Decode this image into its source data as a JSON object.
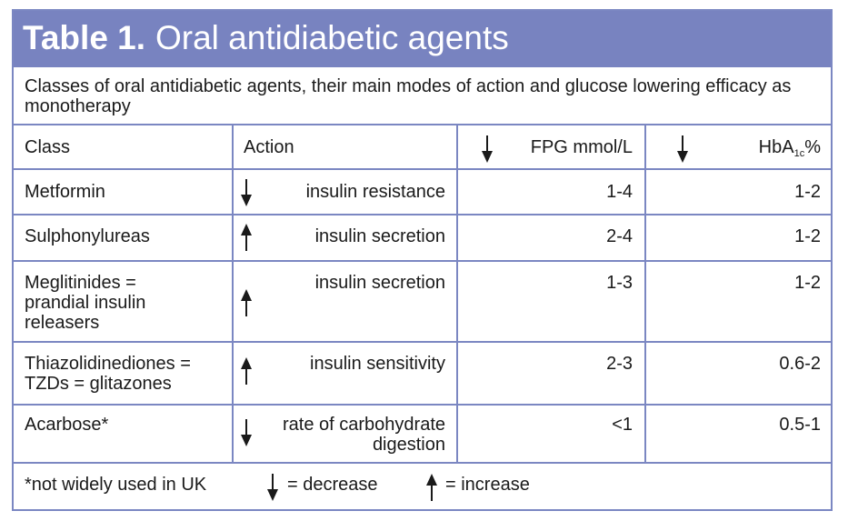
{
  "title": {
    "bold": "Table 1.",
    "rest": "Oral antidiabetic agents"
  },
  "caption": "Classes of oral antidiabetic agents, their main modes of action and glucose lowering efficacy as monotherapy",
  "headers": {
    "class": "Class",
    "action": "Action",
    "fpg": "FPG mmol/L",
    "hba_main": "HbA",
    "hba_sub": "1c",
    "hba_unit": "%"
  },
  "rows": [
    {
      "class_lines": [
        "Metformin"
      ],
      "arrow": "down",
      "action_lines": [
        "insulin resistance"
      ],
      "fpg": "1-4",
      "hba1c": "1-2"
    },
    {
      "class_lines": [
        "Sulphonylureas"
      ],
      "arrow": "up",
      "action_lines": [
        "insulin secretion"
      ],
      "fpg": "2-4",
      "hba1c": "1-2"
    },
    {
      "class_lines": [
        "Meglitinides =",
        "prandial insulin",
        "releasers"
      ],
      "arrow": "up",
      "action_lines": [
        "insulin secretion"
      ],
      "fpg": "1-3",
      "hba1c": "1-2"
    },
    {
      "class_lines": [
        "Thiazolidinediones =",
        "TZDs = glitazones"
      ],
      "arrow": "up",
      "action_lines": [
        "insulin sensitivity"
      ],
      "fpg": "2-3",
      "hba1c": "0.6-2"
    },
    {
      "class_lines": [
        "Acarbose*"
      ],
      "arrow": "down",
      "action_lines": [
        "rate of carbohydrate",
        "digestion"
      ],
      "fpg": "<1",
      "hba1c": "0.5-1"
    }
  ],
  "footnote": {
    "note": "*not widely used in UK",
    "decrease": "= decrease",
    "increase": "= increase"
  },
  "colors": {
    "accent": "#7883c0",
    "border": "#7b87c2",
    "text": "#1a1a1a"
  },
  "icons": {
    "down": "down-arrow-icon",
    "up": "up-arrow-icon"
  }
}
